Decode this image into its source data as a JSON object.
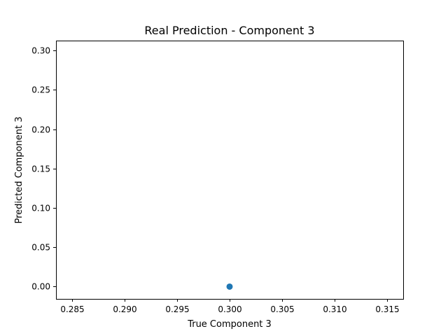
{
  "chart_data": {
    "type": "scatter",
    "title": "Real Prediction - Component 3",
    "xlabel": "True Component 3",
    "ylabel": "Predicted Component 3",
    "xlim": [
      0.2835,
      0.3165
    ],
    "ylim": [
      -0.0156,
      0.3126
    ],
    "xticks": [
      0.285,
      0.29,
      0.295,
      0.3,
      0.305,
      0.31,
      0.315
    ],
    "xtick_labels": [
      "0.285",
      "0.290",
      "0.295",
      "0.300",
      "0.305",
      "0.310",
      "0.315"
    ],
    "yticks": [
      0.0,
      0.05,
      0.1,
      0.15,
      0.2,
      0.25,
      0.3
    ],
    "ytick_labels": [
      "0.00",
      "0.05",
      "0.10",
      "0.15",
      "0.20",
      "0.25",
      "0.30"
    ],
    "grid": false,
    "series": [
      {
        "x": [
          0.3
        ],
        "y": [
          0.0
        ],
        "color": "#1f77b4"
      }
    ]
  }
}
